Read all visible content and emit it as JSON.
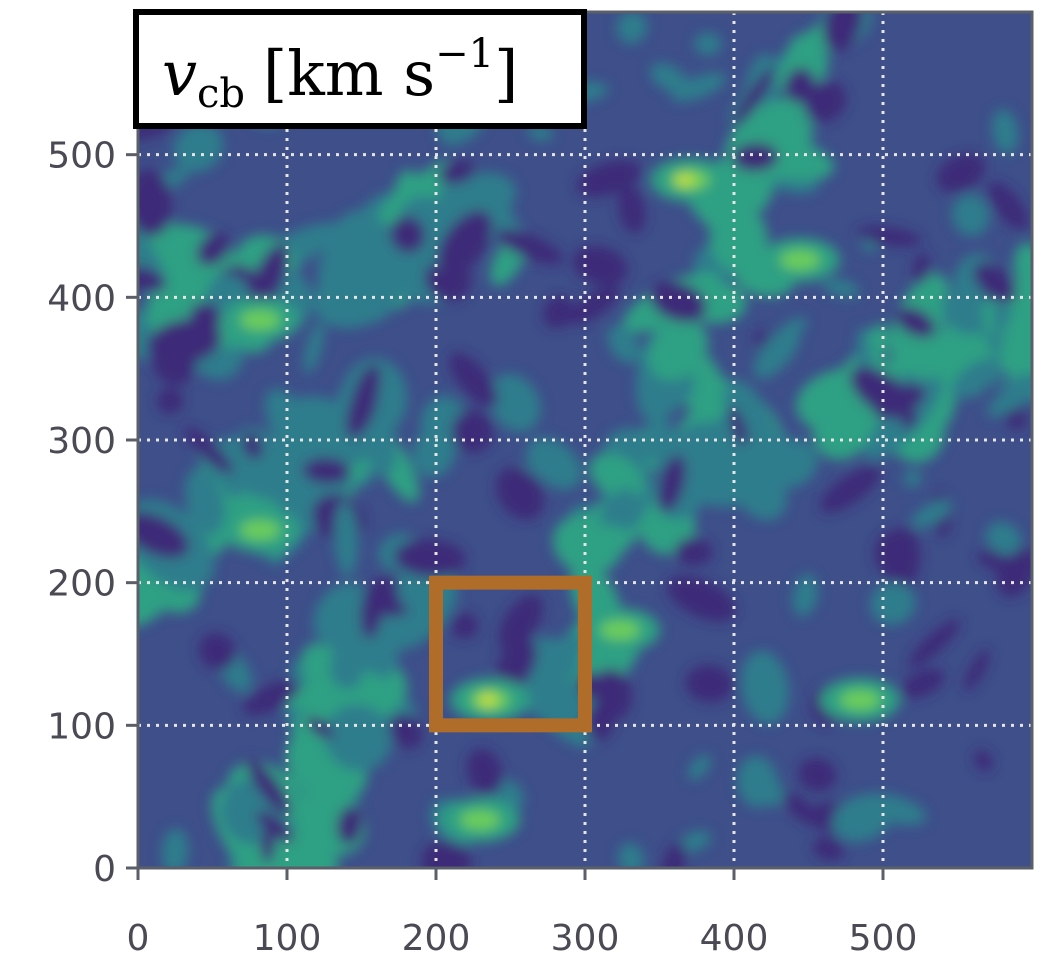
{
  "chart_data": {
    "type": "contour",
    "label": {
      "symbol": "v",
      "subscript": "cb",
      "unit": "[km s",
      "superscript": "−1",
      "close": "]"
    },
    "xlim": [
      0,
      600
    ],
    "ylim": [
      0,
      600
    ],
    "xticks": [
      0,
      100,
      200,
      300,
      400,
      500
    ],
    "yticks": [
      0,
      100,
      200,
      300,
      400,
      500
    ],
    "grid": true,
    "colors": [
      "#3d2a78",
      "#3e4f8a",
      "#2e7d8c",
      "#2fa083",
      "#6ccd5a",
      "#c4e03a"
    ],
    "highlight": {
      "x": [
        200,
        300
      ],
      "y": [
        100,
        200
      ],
      "color": "#b06d2a"
    }
  }
}
